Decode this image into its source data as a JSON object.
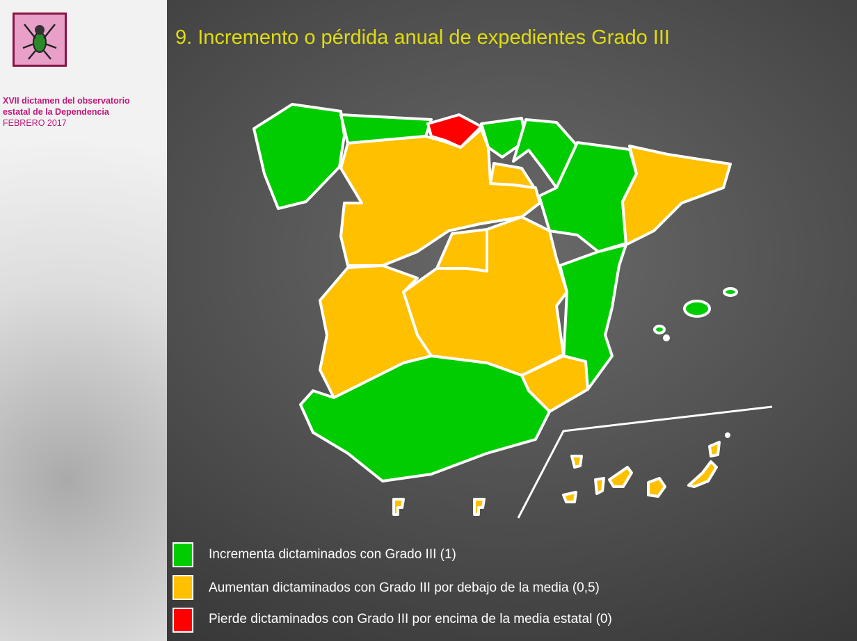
{
  "header": {
    "title": "9. Incremento o pérdida anual de expedientes Grado III"
  },
  "sidebar": {
    "lines": [
      "XVII dictamen del observatorio",
      "estatal de la Dependencia",
      "FEBRERO 2017"
    ]
  },
  "legend": {
    "items": [
      "Incrementa dictaminados con Grado III (1)",
      "Aumentan dictaminados con Grado III por  debajo de la media  (0,5)",
      "Pierde dictaminados con Grado III por encima de la media estatal (0)"
    ]
  }
}
